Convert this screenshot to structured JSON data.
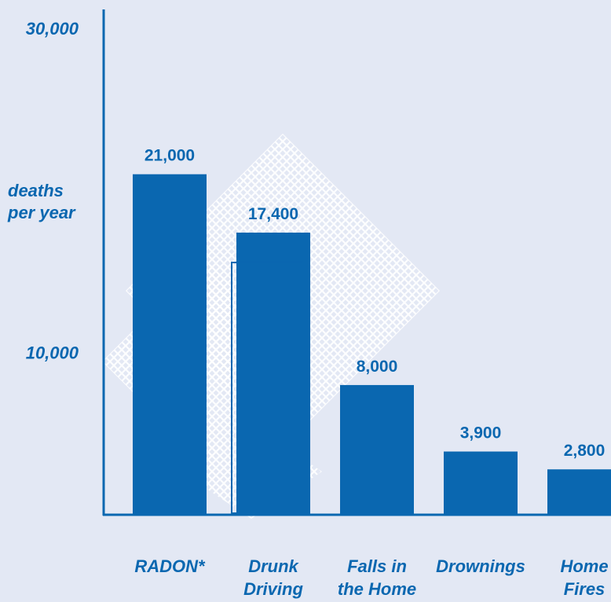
{
  "colors": {
    "bar": "#0a67b0",
    "text": "#0a67b0",
    "background": "#e3e8f4"
  },
  "chart_data": {
    "type": "bar",
    "title": "",
    "xlabel": "",
    "ylabel_lines": [
      "deaths",
      "per year"
    ],
    "ylim": [
      0,
      30000
    ],
    "y_ticks": [
      {
        "value": 30000,
        "label": "30,000"
      },
      {
        "value": 10000,
        "label": "10,000"
      }
    ],
    "categories": [
      {
        "lines": [
          "RADON*"
        ]
      },
      {
        "lines": [
          "Drunk",
          "Driving"
        ]
      },
      {
        "lines": [
          "Falls in",
          "the Home"
        ]
      },
      {
        "lines": [
          "Drownings"
        ]
      },
      {
        "lines": [
          "Home",
          "Fires"
        ]
      }
    ],
    "values": [
      21000,
      17400,
      8000,
      3900,
      2800
    ],
    "value_labels": [
      "21,000",
      "17,400",
      "8,000",
      "3,900",
      "2,800"
    ],
    "grid": false,
    "legend": "none"
  }
}
